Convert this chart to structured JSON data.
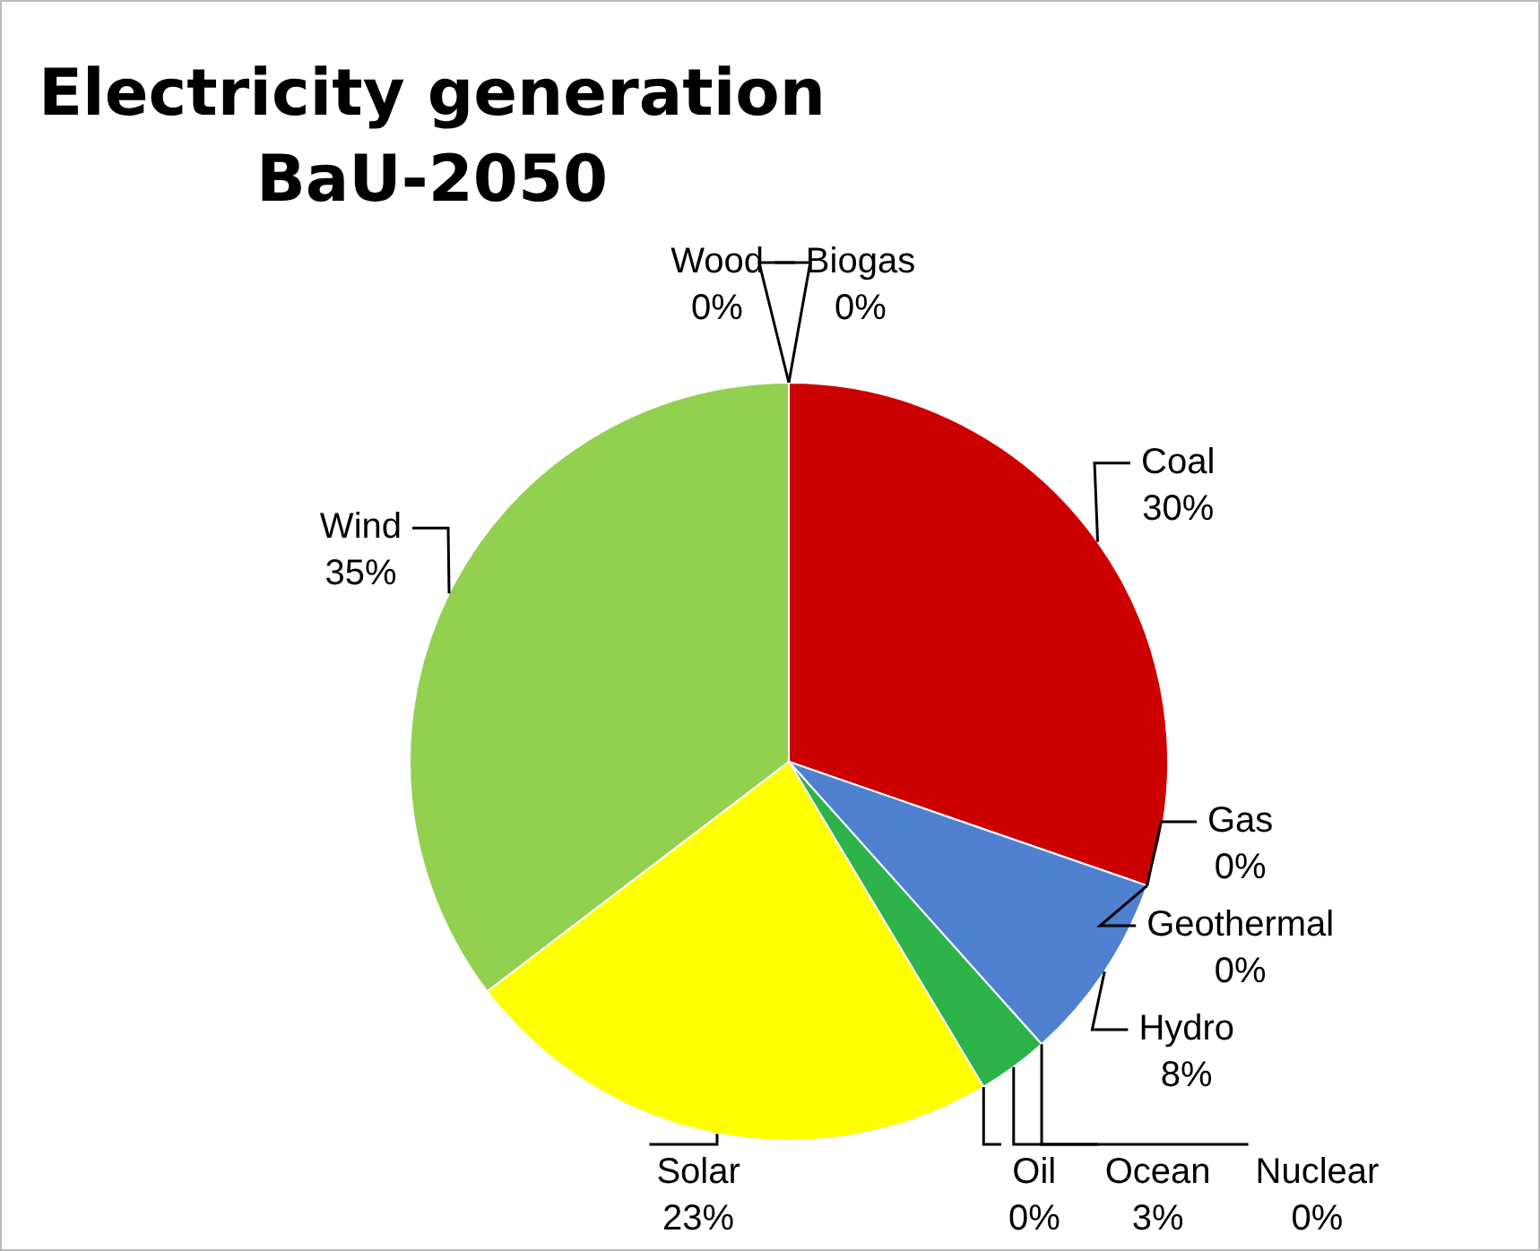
{
  "chart_data": {
    "type": "pie",
    "title": "Electricity generation BaU-2050",
    "categories": [
      "Biogas",
      "Coal",
      "Gas",
      "Geothermal",
      "Hydro",
      "Nuclear",
      "Ocean",
      "Oil",
      "Solar",
      "Wind",
      "Wood"
    ],
    "values": [
      0,
      30,
      0,
      0,
      8,
      0,
      3,
      0,
      23,
      35,
      0
    ],
    "value_labels": [
      "0%",
      "30%",
      "0%",
      "0%",
      "8%",
      "0%",
      "3%",
      "0%",
      "23%",
      "35%",
      "0%"
    ],
    "colors": [
      "#8b2a2a",
      "#cc0000",
      "#7f7f7f",
      "#f79646",
      "#4f81d0",
      "#8064a2",
      "#2db34a",
      "#4bacc6",
      "#ffff00",
      "#92d050",
      "#a0522d"
    ]
  }
}
